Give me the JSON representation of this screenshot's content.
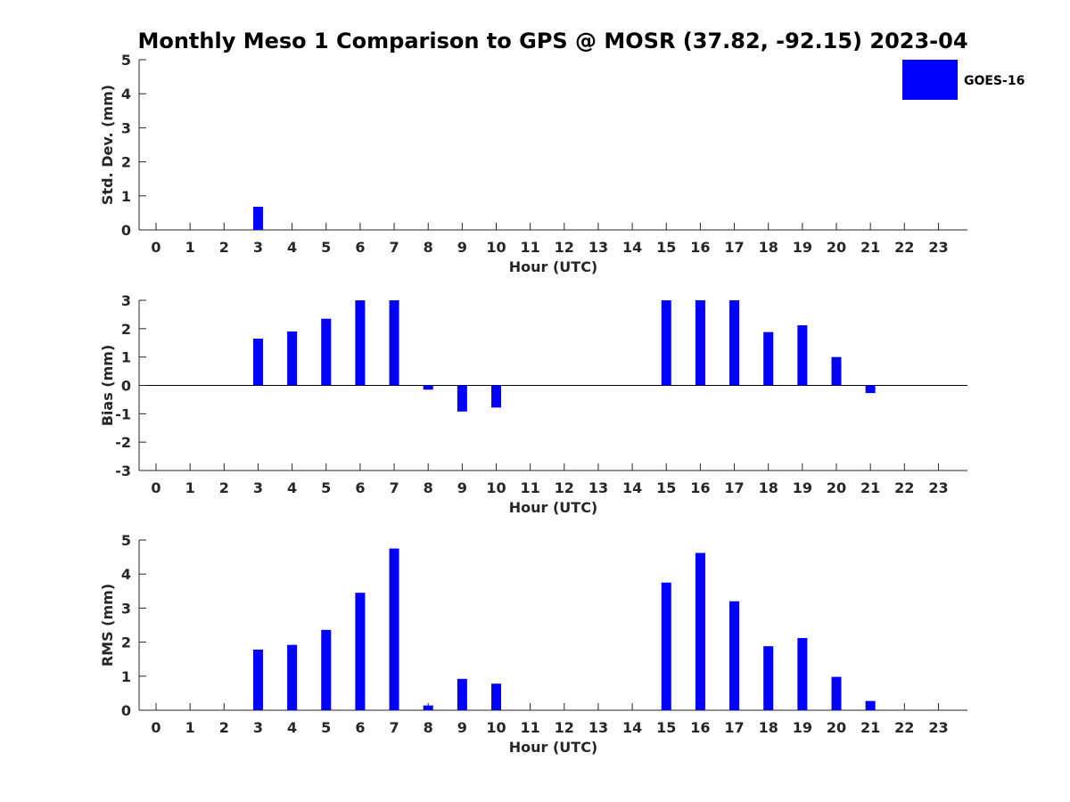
{
  "title": "Monthly Meso 1 Comparison to GPS @ MOSR (37.82, -92.15) 2023-04",
  "legend": {
    "label": "GOES-16",
    "color": "#0000ff",
    "placement": "top-right"
  },
  "chart_data": [
    {
      "type": "bar",
      "xlabel": "Hour (UTC)",
      "ylabel": "Std. Dev. (mm)",
      "categories": [
        "0",
        "1",
        "2",
        "3",
        "4",
        "5",
        "6",
        "7",
        "8",
        "9",
        "10",
        "11",
        "12",
        "13",
        "14",
        "15",
        "16",
        "17",
        "18",
        "19",
        "20",
        "21",
        "22",
        "23"
      ],
      "series": [
        {
          "name": "GOES-16",
          "values": [
            null,
            null,
            null,
            0.68,
            null,
            null,
            null,
            null,
            null,
            null,
            null,
            null,
            null,
            null,
            null,
            null,
            null,
            null,
            null,
            null,
            null,
            null,
            null,
            null
          ]
        }
      ],
      "ylim": [
        0,
        5
      ],
      "yticks": [
        "0",
        "1",
        "2",
        "3",
        "4",
        "5"
      ],
      "grid": false
    },
    {
      "type": "bar",
      "xlabel": "Hour (UTC)",
      "ylabel": "Bias (mm)",
      "categories": [
        "0",
        "1",
        "2",
        "3",
        "4",
        "5",
        "6",
        "7",
        "8",
        "9",
        "10",
        "11",
        "12",
        "13",
        "14",
        "15",
        "16",
        "17",
        "18",
        "19",
        "20",
        "21",
        "22",
        "23"
      ],
      "series": [
        {
          "name": "GOES-16",
          "values": [
            null,
            null,
            null,
            1.65,
            1.9,
            2.35,
            3.0,
            3.0,
            -0.15,
            -0.92,
            -0.78,
            null,
            null,
            null,
            null,
            3.0,
            3.0,
            3.0,
            1.88,
            2.12,
            1.0,
            -0.27,
            null,
            null
          ]
        }
      ],
      "ylim": [
        -3,
        3
      ],
      "yticks": [
        "-3",
        "-2",
        "-1",
        "0",
        "1",
        "2",
        "3"
      ],
      "grid": false
    },
    {
      "type": "bar",
      "xlabel": "Hour (UTC)",
      "ylabel": "RMS (mm)",
      "categories": [
        "0",
        "1",
        "2",
        "3",
        "4",
        "5",
        "6",
        "7",
        "8",
        "9",
        "10",
        "11",
        "12",
        "13",
        "14",
        "15",
        "16",
        "17",
        "18",
        "19",
        "20",
        "21",
        "22",
        "23"
      ],
      "series": [
        {
          "name": "GOES-16",
          "values": [
            null,
            null,
            null,
            1.78,
            1.92,
            2.36,
            3.45,
            4.75,
            0.14,
            0.92,
            0.78,
            null,
            null,
            null,
            null,
            3.75,
            4.62,
            3.2,
            1.88,
            2.12,
            0.98,
            0.27,
            null,
            null
          ]
        }
      ],
      "ylim": [
        0,
        5
      ],
      "yticks": [
        "0",
        "1",
        "2",
        "3",
        "4",
        "5"
      ],
      "grid": false
    }
  ]
}
